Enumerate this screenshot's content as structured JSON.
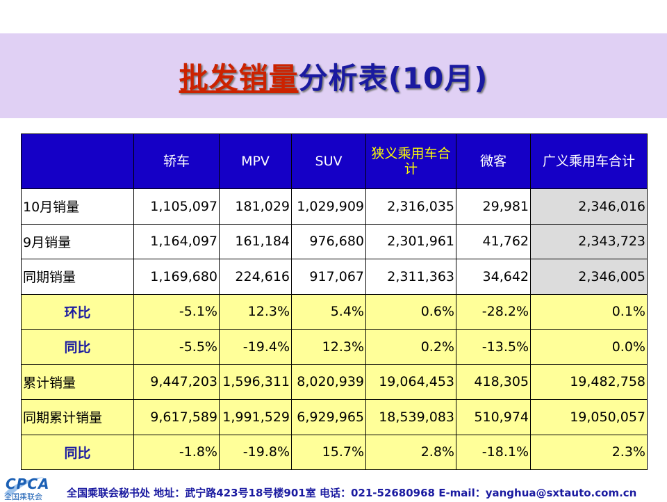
{
  "title": {
    "part1": "批发销量",
    "part2": "分析表(10月)"
  },
  "table": {
    "headers": [
      "",
      "轿车",
      "MPV",
      "SUV",
      "狭义乘用车合计",
      "微客",
      "广义乘用车合计"
    ],
    "rows": [
      {
        "label": "10月销量",
        "values": [
          "1,105,097",
          "181,029",
          "1,029,909",
          "2,316,035",
          "29,981",
          "2,346,016"
        ]
      },
      {
        "label": "9月销量",
        "values": [
          "1,164,097",
          "161,184",
          "976,680",
          "2,301,961",
          "41,762",
          "2,343,723"
        ]
      },
      {
        "label": "同期销量",
        "values": [
          "1,169,680",
          "224,616",
          "917,067",
          "2,311,363",
          "34,642",
          "2,346,005"
        ]
      },
      {
        "label": "环比",
        "values": [
          "-5.1%",
          "12.3%",
          "5.4%",
          "0.6%",
          "-28.2%",
          "0.1%"
        ]
      },
      {
        "label": "同比",
        "values": [
          "-5.5%",
          "-19.4%",
          "12.3%",
          "0.2%",
          "-13.5%",
          "0.0%"
        ]
      },
      {
        "label": "累计销量",
        "values": [
          "9,447,203",
          "1,596,311",
          "8,020,939",
          "19,064,453",
          "418,305",
          "19,482,758"
        ]
      },
      {
        "label": "同期累计销量",
        "values": [
          "9,617,589",
          "1,991,529",
          "6,929,965",
          "18,539,083",
          "510,974",
          "19,050,057"
        ]
      },
      {
        "label": "同比",
        "values": [
          "-1.8%",
          "-19.8%",
          "15.7%",
          "2.8%",
          "-18.1%",
          "2.3%"
        ]
      }
    ]
  },
  "footer": {
    "logo": "CPCA",
    "logo_sub": "全国乘联会",
    "text": "全国乘联会秘书处  地址：武宁路423号18号楼901室    电话：021-52680968   E-mail：yanghua@sxtauto.com.cn"
  },
  "colors": {
    "title_band": "#e0d0f4",
    "header_bg": "#1500c6",
    "highlight_row": "#ffff99",
    "negative": "#006600",
    "positive": "#ff0000"
  }
}
